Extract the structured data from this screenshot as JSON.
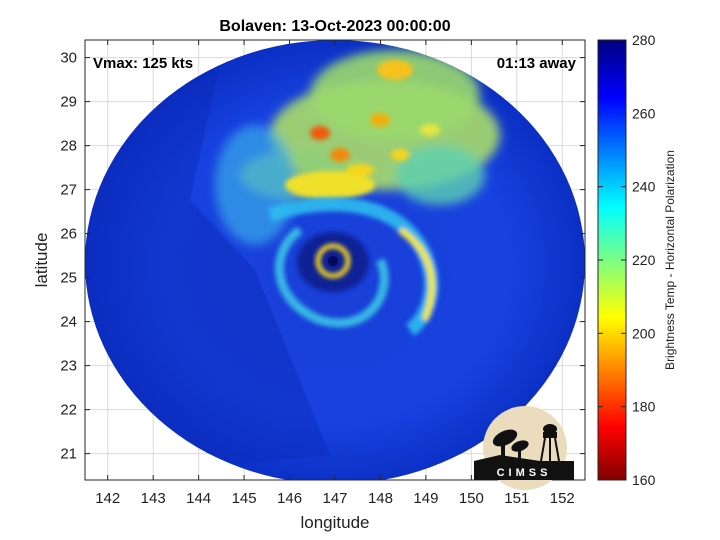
{
  "chart_data": {
    "type": "heatmap",
    "title": "Bolaven: 13-Oct-2023 00:00:00",
    "xlabel": "longitude",
    "ylabel": "latitude",
    "xlim": [
      141.5,
      152.5
    ],
    "ylim": [
      20.4,
      30.4
    ],
    "xticks": [
      142,
      143,
      144,
      145,
      146,
      147,
      148,
      149,
      150,
      151,
      152
    ],
    "yticks": [
      21,
      22,
      23,
      24,
      25,
      26,
      27,
      28,
      29,
      30
    ],
    "grid": true,
    "storm_center": {
      "lon": 146.9,
      "lat": 25.4
    },
    "annotations": {
      "vmax": "Vmax: 125 kts",
      "time_away": "01:13 away"
    },
    "colorbar": {
      "label": "Brightness Temp - Horizontal Polarization",
      "range": [
        160,
        280
      ],
      "ticks": [
        160,
        180,
        200,
        220,
        240,
        260,
        280
      ],
      "colormap": "jet"
    },
    "logo": {
      "text": "CIMSS"
    }
  }
}
